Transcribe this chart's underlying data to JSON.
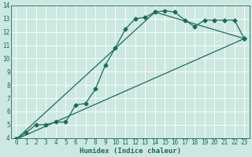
{
  "xlabel": "Humidex (Indice chaleur)",
  "xlim": [
    -0.5,
    23.5
  ],
  "ylim": [
    4,
    14
  ],
  "xticks": [
    0,
    1,
    2,
    3,
    4,
    5,
    6,
    7,
    8,
    9,
    10,
    11,
    12,
    13,
    14,
    15,
    16,
    17,
    18,
    19,
    20,
    21,
    22,
    23
  ],
  "yticks": [
    4,
    5,
    6,
    7,
    8,
    9,
    10,
    11,
    12,
    13,
    14
  ],
  "bg_color": "#cce8e0",
  "grid_color": "#b8d8d0",
  "line_color": "#1a6b5a",
  "line1_x": [
    0,
    1,
    2,
    3,
    4,
    5,
    6,
    7,
    8,
    9,
    10,
    11,
    12,
    13,
    14,
    15,
    16,
    17,
    18,
    19,
    20,
    21,
    22,
    23
  ],
  "line1_y": [
    3.9,
    4.4,
    5.0,
    5.0,
    5.2,
    5.2,
    6.5,
    6.6,
    7.7,
    9.5,
    10.8,
    12.2,
    13.0,
    13.1,
    13.5,
    13.6,
    13.5,
    12.9,
    12.4,
    12.9,
    12.9,
    12.9,
    12.9,
    11.5
  ],
  "line2_x": [
    0,
    23
  ],
  "line2_y": [
    3.9,
    11.5
  ],
  "line3_x": [
    0,
    14,
    23
  ],
  "line3_y": [
    3.9,
    13.5,
    11.5
  ],
  "marker": "D",
  "markersize": 2.5,
  "linewidth": 0.9,
  "tick_fontsize": 5.5,
  "xlabel_fontsize": 6.5
}
